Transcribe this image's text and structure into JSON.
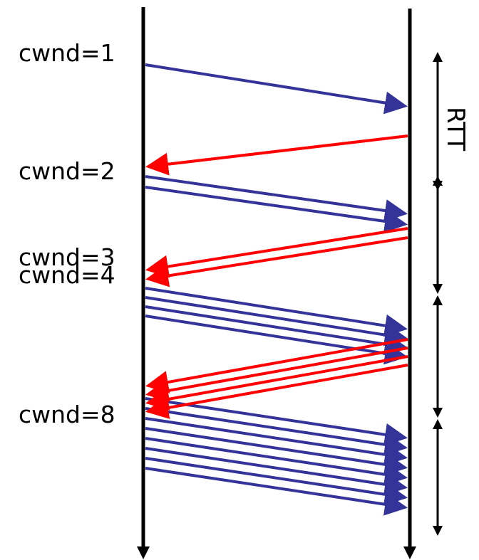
{
  "colors": {
    "sender_segment": "#333399",
    "receiver_ack": "#ff0000",
    "timeline": "#000000"
  },
  "labels": {
    "cwnd_1": "cwnd=1",
    "cwnd_2": "cwnd=2",
    "cwnd_3": "cwnd=3",
    "cwnd_4": "cwnd=4",
    "cwnd_8": "cwnd=8",
    "rtt": "RTT"
  },
  "rounds": [
    {
      "segments": 1,
      "acks": 1
    },
    {
      "segments": 2,
      "acks": 2
    },
    {
      "segments": 4,
      "acks": 4
    },
    {
      "segments": 8,
      "acks": 0
    }
  ]
}
